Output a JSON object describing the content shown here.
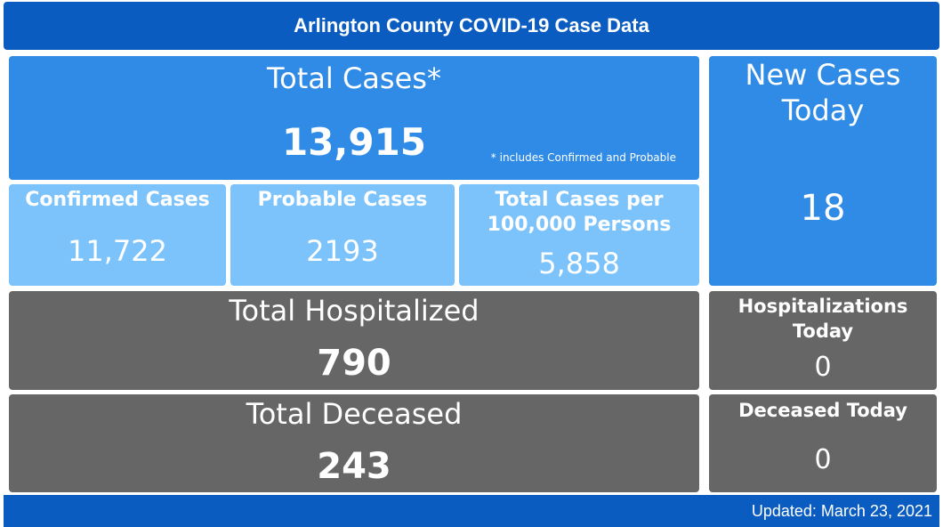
{
  "header": {
    "title": "Arlington County COVID-19 Case Data"
  },
  "total_cases": {
    "label": "Total Cases*",
    "value": "13,915",
    "footnote": "* includes Confirmed and Probable"
  },
  "confirmed_cases": {
    "label": "Confirmed Cases",
    "value": "11,722"
  },
  "probable_cases": {
    "label": "Probable Cases",
    "value": "2193"
  },
  "cases_per_100k": {
    "label_line1": "Total Cases per",
    "label_line2": "100,000 Persons",
    "value": "5,858"
  },
  "new_cases_today": {
    "label_line1": "New Cases",
    "label_line2": "Today",
    "value": "18"
  },
  "total_hospitalized": {
    "label": "Total Hospitalized",
    "value": "790"
  },
  "hospitalizations_today": {
    "label_line1": "Hospitalizations",
    "label_line2": "Today",
    "value": "0"
  },
  "total_deceased": {
    "label": "Total Deceased",
    "value": "243"
  },
  "deceased_today": {
    "label": "Deceased Today",
    "value": "0"
  },
  "footer": {
    "updated": "Updated: March 23, 2021"
  },
  "colors": {
    "header_blue": "#0a5cc0",
    "card_blue": "#2f8be6",
    "card_light_blue": "#7cc3fb",
    "card_gray": "#666666"
  }
}
